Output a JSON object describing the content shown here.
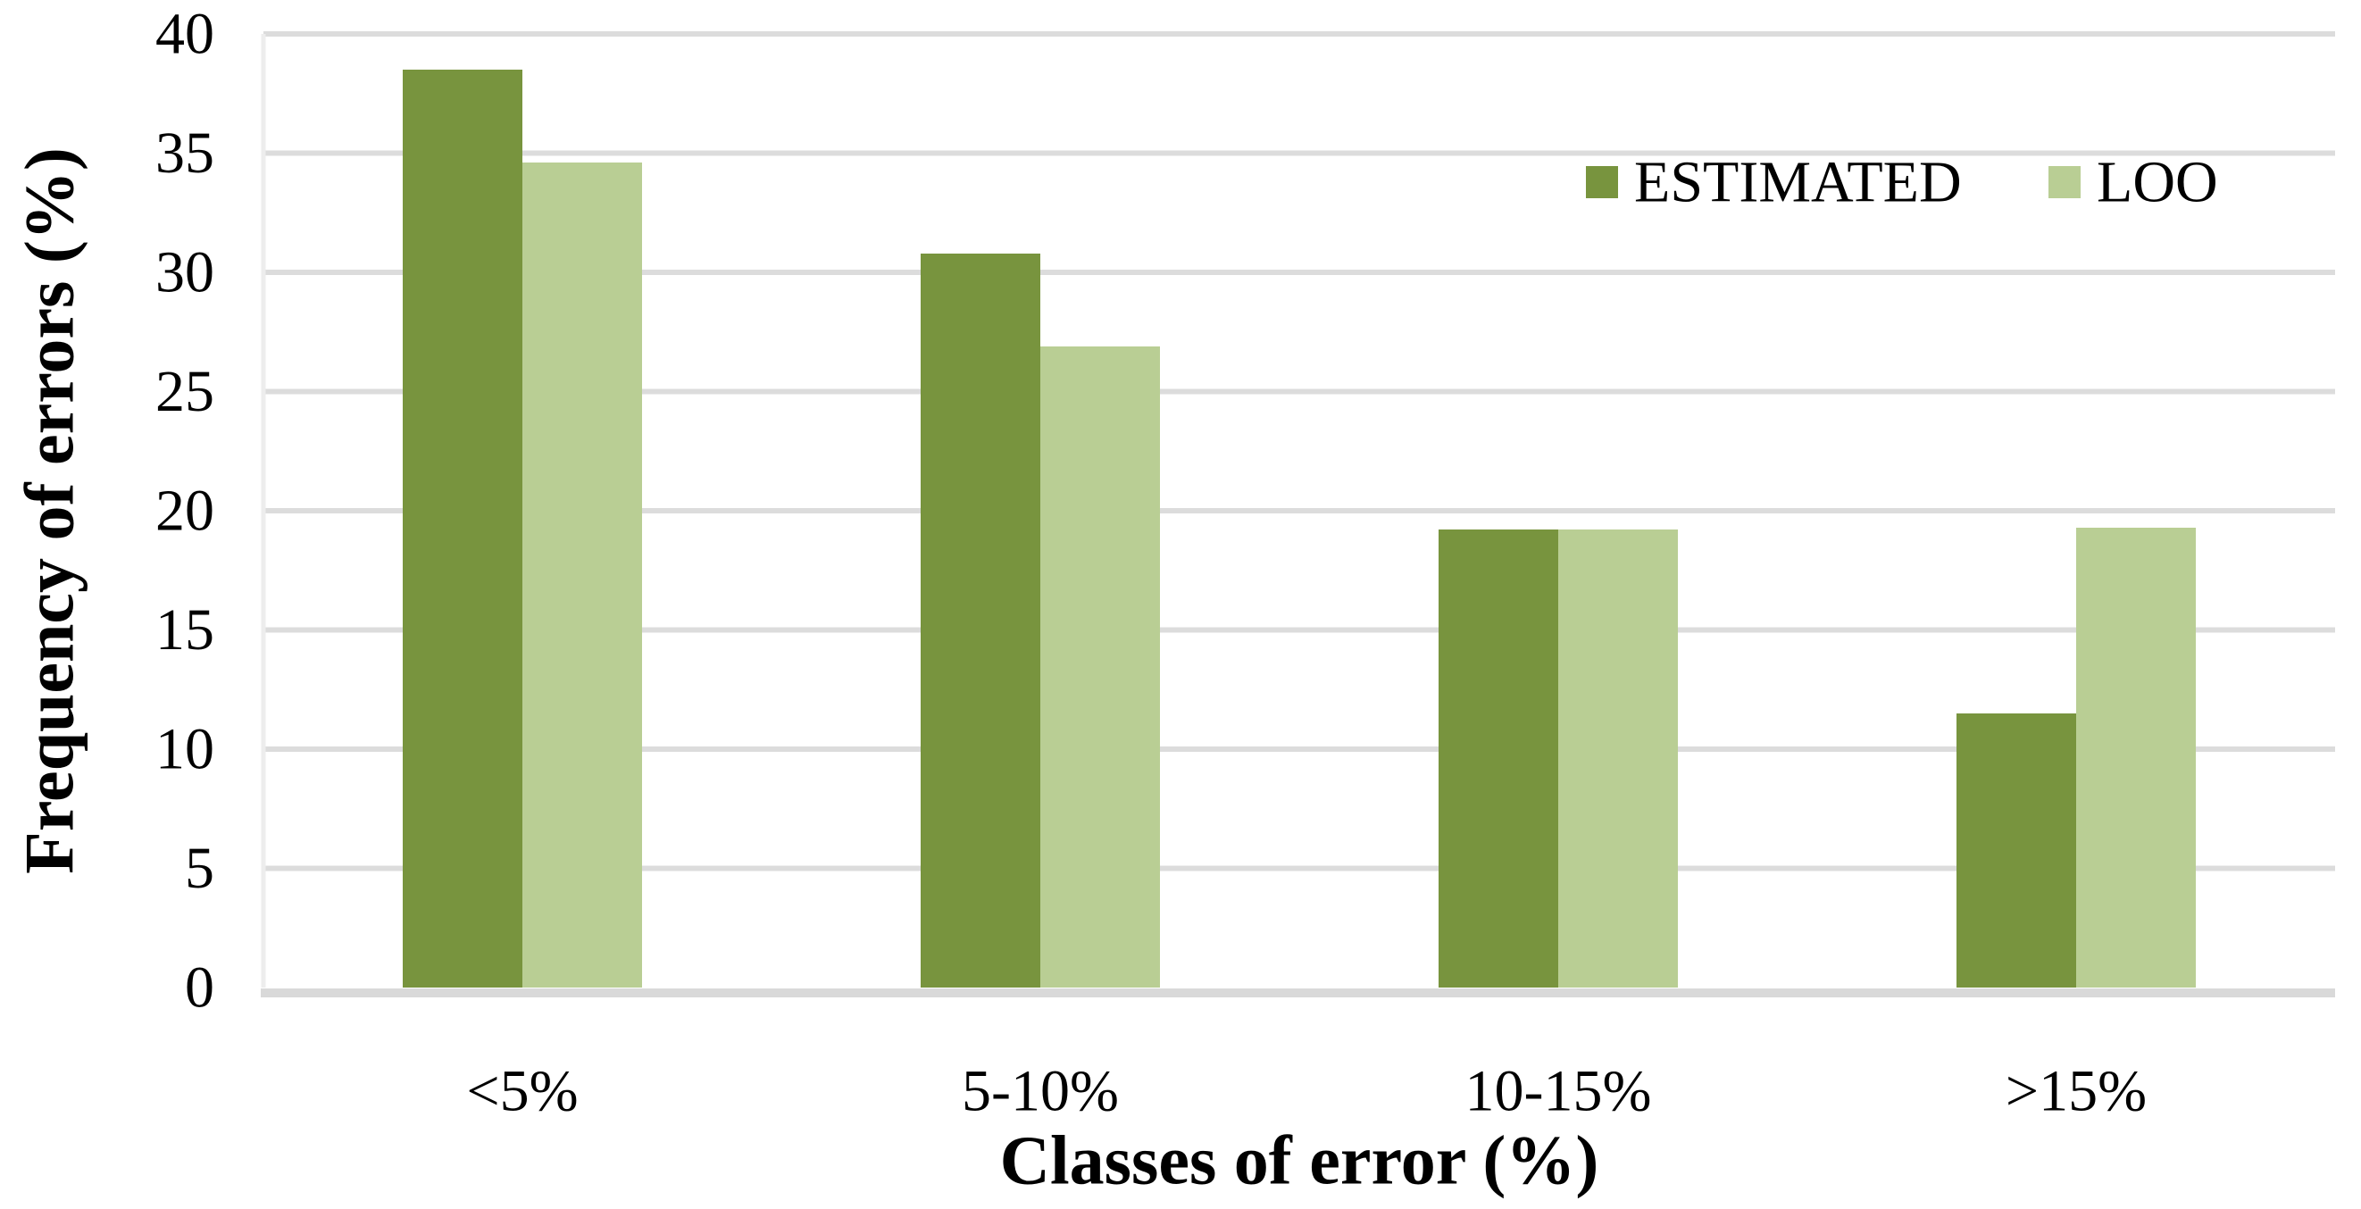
{
  "figure": {
    "background": "#ffffff"
  },
  "chart_data": {
    "type": "bar",
    "title": "",
    "categories": [
      "<5%",
      "5-10%",
      "10-15%",
      ">15%"
    ],
    "series": [
      {
        "name": "ESTIMATED",
        "color": "#78943e",
        "values": [
          38.5,
          30.8,
          19.2,
          11.5
        ]
      },
      {
        "name": "LOO",
        "color": "#b9ce94",
        "values": [
          34.6,
          26.9,
          19.2,
          19.3
        ]
      }
    ],
    "xlabel": "Classes of error (%)",
    "ylabel": "Frequency of errors (%)",
    "ylim": [
      0,
      40
    ],
    "ytick_step": 5,
    "yticks": [
      0,
      5,
      10,
      15,
      20,
      25,
      30,
      35,
      40
    ],
    "grid": true,
    "legend_position": "top-right",
    "colors": {
      "gridline": "#dcdcdc",
      "axis_line": "#d9d9d9",
      "plot_border": "#ededed",
      "text": "#000000",
      "background": "#ffffff"
    }
  }
}
